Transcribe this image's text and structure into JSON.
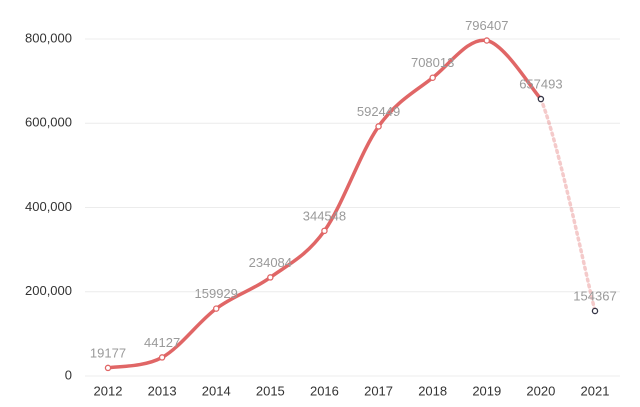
{
  "chart_data": {
    "type": "line",
    "categories": [
      "2012",
      "2013",
      "2014",
      "2015",
      "2016",
      "2017",
      "2018",
      "2019",
      "2020",
      "2021"
    ],
    "values": [
      19177,
      44127,
      159929,
      234084,
      344548,
      592449,
      708013,
      796407,
      657493,
      154367
    ],
    "color": "#e06666",
    "ylim": [
      0,
      800000
    ],
    "yticks": [
      0,
      {
        "value": 200000,
        "label": "200,000"
      },
      {
        "value": 400000,
        "label": "400,000"
      },
      {
        "value": 600000,
        "label": "600,000"
      },
      {
        "value": 800000,
        "label": "800,000"
      }
    ],
    "grid": true
  }
}
